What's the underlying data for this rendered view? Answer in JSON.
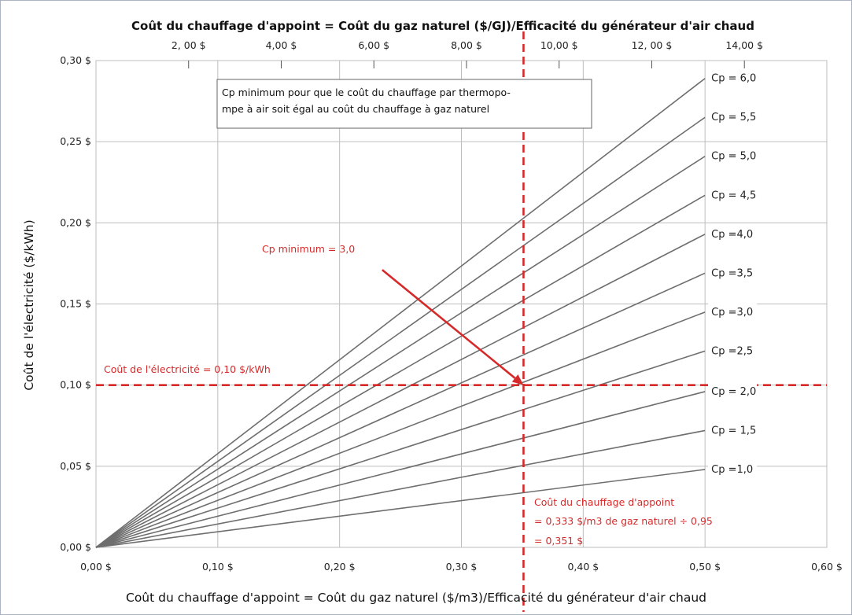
{
  "chart_data": {
    "type": "line",
    "title": "Coût du chauffage d'appoint = Coût du gaz naturel ($/GJ)/Efficacité du générateur d'air chaud",
    "xlabel": "Coût du chauffage d'appoint = Coût du gaz naturel ($/m3)/Efficacité du générateur d'air chaud",
    "ylabel": "Coût de l'électricité ($/kWh)",
    "xlim": [
      0,
      0.6
    ],
    "ylim": [
      0,
      0.3
    ],
    "grid": true,
    "x_ticks": [
      {
        "value": 0.0,
        "label": "0,00 $"
      },
      {
        "value": 0.1,
        "label": "0,10 $"
      },
      {
        "value": 0.2,
        "label": "0,20 $"
      },
      {
        "value": 0.3,
        "label": "0,30 $"
      },
      {
        "value": 0.4,
        "label": "0,40 $"
      },
      {
        "value": 0.5,
        "label": "0,50 $"
      },
      {
        "value": 0.6,
        "label": "0,60 $"
      }
    ],
    "y_ticks": [
      {
        "value": 0.0,
        "label": "0,00 $"
      },
      {
        "value": 0.05,
        "label": "0,05 $"
      },
      {
        "value": 0.1,
        "label": "0,10 $"
      },
      {
        "value": 0.15,
        "label": "0,15 $"
      },
      {
        "value": 0.2,
        "label": "0,20 $"
      },
      {
        "value": 0.25,
        "label": "0,25 $"
      },
      {
        "value": 0.3,
        "label": "0,30 $"
      }
    ],
    "top_ticks": [
      {
        "value": 2,
        "label": "2, 00 $"
      },
      {
        "value": 4,
        "label": "4,00 $"
      },
      {
        "value": 6,
        "label": "6,00 $"
      },
      {
        "value": 8,
        "label": "8,00 $"
      },
      {
        "value": 10,
        "label": "10,00 $"
      },
      {
        "value": 12,
        "label": "12, 00 $"
      },
      {
        "value": 14,
        "label": "14,00 $"
      }
    ],
    "top_axis_gj_per_x": 26.3,
    "series": [
      {
        "cp": 1.0,
        "label": "Cp =1,0",
        "x": [
          0,
          0.5
        ],
        "y": [
          0,
          0.048
        ]
      },
      {
        "cp": 1.5,
        "label": "Cp = 1,5",
        "x": [
          0,
          0.5
        ],
        "y": [
          0,
          0.072
        ]
      },
      {
        "cp": 2.0,
        "label": "Cp = 2,0",
        "x": [
          0,
          0.5
        ],
        "y": [
          0,
          0.096
        ]
      },
      {
        "cp": 2.5,
        "label": "Cp =2,5",
        "x": [
          0,
          0.5
        ],
        "y": [
          0,
          0.121
        ]
      },
      {
        "cp": 3.0,
        "label": "Cp =3,0",
        "x": [
          0,
          0.5
        ],
        "y": [
          0,
          0.145
        ]
      },
      {
        "cp": 3.5,
        "label": "Cp =3,5",
        "x": [
          0,
          0.5
        ],
        "y": [
          0,
          0.169
        ]
      },
      {
        "cp": 4.0,
        "label": "Cp =4,0",
        "x": [
          0,
          0.5
        ],
        "y": [
          0,
          0.193
        ]
      },
      {
        "cp": 4.5,
        "label": "Cp = 4,5",
        "x": [
          0,
          0.5
        ],
        "y": [
          0,
          0.217
        ]
      },
      {
        "cp": 5.0,
        "label": "Cp = 5,0",
        "x": [
          0,
          0.5
        ],
        "y": [
          0,
          0.241
        ]
      },
      {
        "cp": 5.5,
        "label": "Cp = 5,5",
        "x": [
          0,
          0.5
        ],
        "y": [
          0,
          0.265
        ]
      },
      {
        "cp": 6.0,
        "label": "Cp = 6,0",
        "x": [
          0,
          0.5
        ],
        "y": [
          0,
          0.289
        ]
      }
    ],
    "reference_lines": {
      "horizontal_y": 0.1,
      "vertical_x": 0.351,
      "color": "#d62a2a"
    },
    "annotations": {
      "note_box_line1": "Cp minimum pour que le coût du chauffage par thermopo-",
      "note_box_line2": "mpe à air soit égal au coût du chauffage à gaz naturel",
      "cp_min": "Cp minimum = 3,0",
      "elec_cost": "Coût de l'électricité = 0,10 $/kWh",
      "backup_line1": "Coût du chauffage d'appoint",
      "backup_line2": "= 0,333 $/m3 de gaz naturel ÷ 0,95",
      "backup_line3": "= 0,351 $",
      "arrow_from": {
        "x": 0.235,
        "y": 0.171
      },
      "arrow_to": {
        "x": 0.351,
        "y": 0.1
      }
    },
    "colors": {
      "lines": "#6e6e6e",
      "grid": "#bdbdbd",
      "reference": "#d62a2a"
    }
  }
}
